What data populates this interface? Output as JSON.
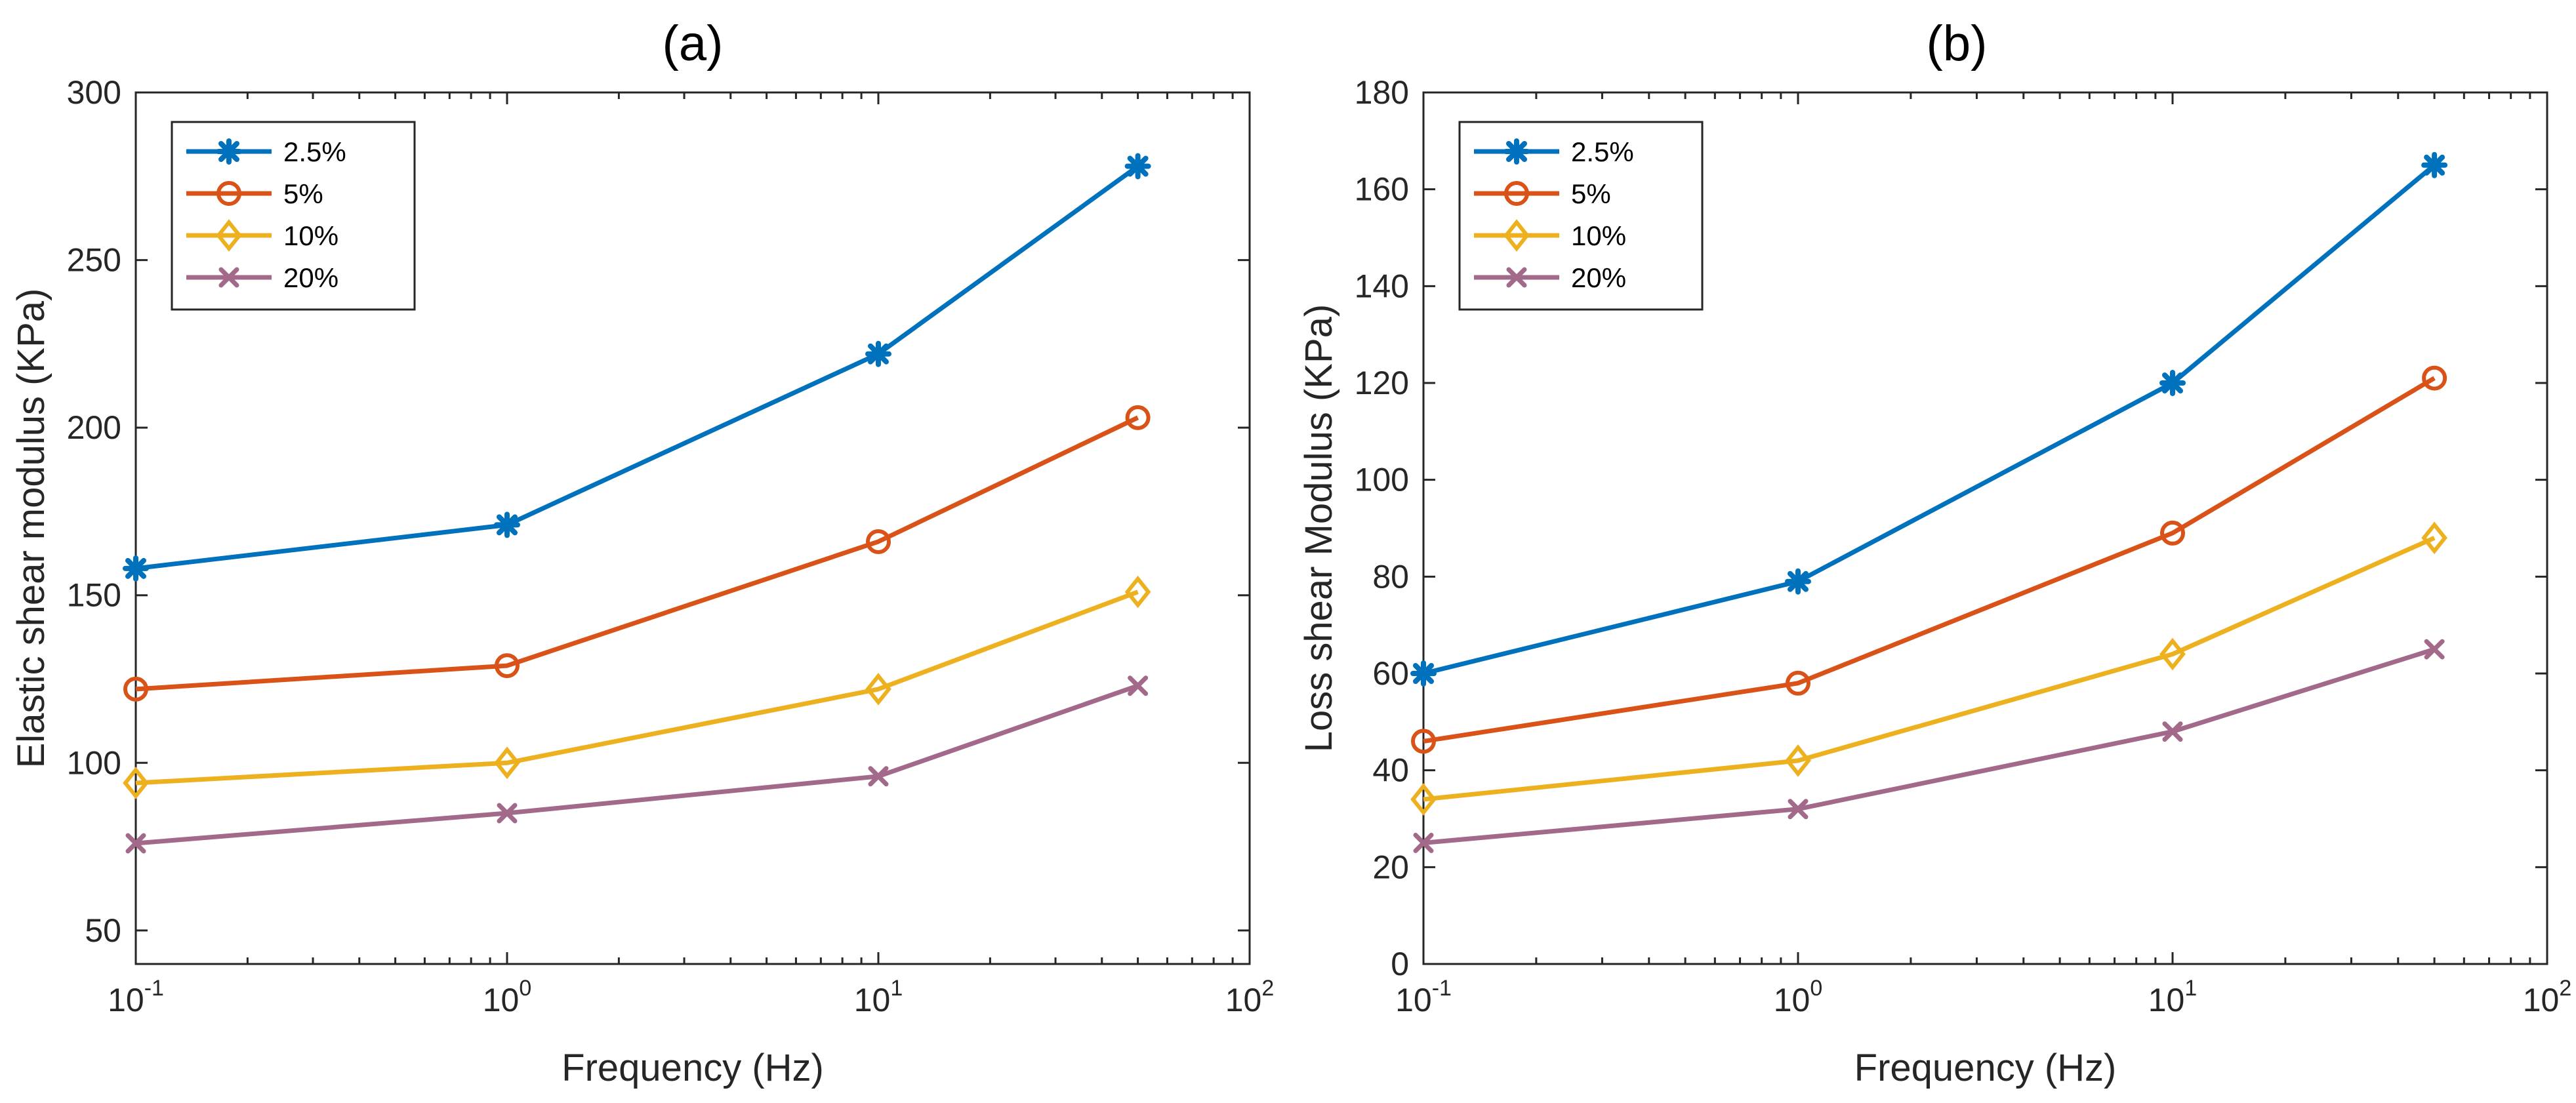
{
  "chart_data": [
    {
      "type": "line",
      "panel": "a",
      "title": "(a)",
      "xlabel": "Frequency (Hz)",
      "ylabel": "Elastic shear modulus (KPa)",
      "xscale": "log",
      "x": [
        0.1,
        1,
        10,
        50
      ],
      "xlim": [
        0.1,
        100
      ],
      "xtick_labels": [
        {
          "base": "10",
          "exp": "-1"
        },
        {
          "base": "10",
          "exp": "0"
        },
        {
          "base": "10",
          "exp": "1"
        },
        {
          "base": "10",
          "exp": "2"
        }
      ],
      "ylim": [
        40,
        300
      ],
      "yticks": [
        50,
        100,
        150,
        200,
        250,
        300
      ],
      "ytick_labels": [
        "50",
        "100",
        "150",
        "200",
        "250",
        "300"
      ],
      "grid": false,
      "legend_position": "top-left",
      "series": [
        {
          "name": "2.5%",
          "marker": "asterisk",
          "color": "#0072BD",
          "values": [
            158,
            171,
            222,
            278
          ]
        },
        {
          "name": "5%",
          "marker": "circle",
          "color": "#D95319",
          "values": [
            122,
            129,
            166,
            203
          ]
        },
        {
          "name": "10%",
          "marker": "diamond",
          "color": "#EDB120",
          "values": [
            94,
            100,
            122,
            151
          ]
        },
        {
          "name": "20%",
          "marker": "x",
          "color": "#A2698A",
          "values": [
            76,
            85,
            96,
            123
          ]
        }
      ]
    },
    {
      "type": "line",
      "panel": "b",
      "title": "(b)",
      "xlabel": "Frequency (Hz)",
      "ylabel": "Loss shear Modulus (KPa)",
      "xscale": "log",
      "x": [
        0.1,
        1,
        10,
        50
      ],
      "xlim": [
        0.1,
        100
      ],
      "xtick_labels": [
        {
          "base": "10",
          "exp": "-1"
        },
        {
          "base": "10",
          "exp": "0"
        },
        {
          "base": "10",
          "exp": "1"
        },
        {
          "base": "10",
          "exp": "2"
        }
      ],
      "ylim": [
        0,
        180
      ],
      "yticks": [
        0,
        20,
        40,
        60,
        80,
        100,
        120,
        140,
        160,
        180
      ],
      "ytick_labels": [
        "0",
        "20",
        "40",
        "60",
        "80",
        "100",
        "120",
        "140",
        "160",
        "180"
      ],
      "grid": false,
      "legend_position": "top-left",
      "series": [
        {
          "name": "2.5%",
          "marker": "asterisk",
          "color": "#0072BD",
          "values": [
            60,
            79,
            120,
            165
          ]
        },
        {
          "name": "5%",
          "marker": "circle",
          "color": "#D95319",
          "values": [
            46,
            58,
            89,
            121
          ]
        },
        {
          "name": "10%",
          "marker": "diamond",
          "color": "#EDB120",
          "values": [
            34,
            42,
            64,
            88
          ]
        },
        {
          "name": "20%",
          "marker": "x",
          "color": "#A2698A",
          "values": [
            25,
            32,
            48,
            65
          ]
        }
      ]
    }
  ]
}
